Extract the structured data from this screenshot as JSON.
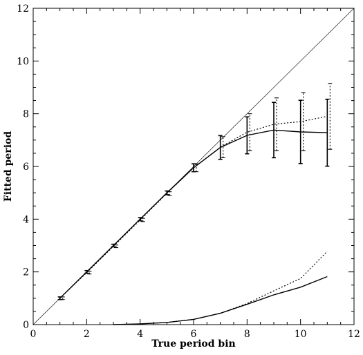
{
  "chart_data": {
    "type": "line",
    "title": "",
    "xlabel": "True period bin",
    "ylabel": "Fitted period",
    "xlim": [
      0,
      12
    ],
    "ylim": [
      0,
      12
    ],
    "xticks": [
      0,
      2,
      4,
      6,
      8,
      10,
      12
    ],
    "yticks": [
      0,
      2,
      4,
      6,
      8,
      10,
      12
    ],
    "grid": false,
    "legend": "none",
    "identity_line": true,
    "series": [
      {
        "style": "solid",
        "x": [
          1,
          2,
          3,
          4,
          5,
          6,
          7,
          8,
          9,
          10,
          11
        ],
        "y": [
          1.0,
          2.0,
          3.0,
          4.0,
          5.0,
          5.95,
          6.72,
          7.18,
          7.38,
          7.31,
          7.28
        ],
        "err": [
          0.05,
          0.05,
          0.05,
          0.06,
          0.07,
          0.15,
          0.45,
          0.7,
          1.05,
          1.2,
          1.27
        ]
      },
      {
        "style": "dotted",
        "x": [
          1,
          2,
          3,
          4,
          5,
          6,
          7,
          8,
          9,
          10,
          11
        ],
        "y": [
          1.0,
          1.97,
          2.97,
          3.97,
          4.97,
          5.95,
          6.73,
          7.3,
          7.6,
          7.7,
          7.9
        ],
        "err": [
          0.05,
          0.05,
          0.05,
          0.06,
          0.07,
          0.15,
          0.4,
          0.7,
          1.0,
          1.1,
          1.25
        ]
      },
      {
        "style": "solid",
        "x": [
          3,
          4,
          5,
          6,
          7,
          8,
          9,
          10,
          11
        ],
        "y": [
          0.0,
          0.03,
          0.08,
          0.2,
          0.43,
          0.77,
          1.13,
          1.42,
          1.82
        ]
      },
      {
        "style": "dotted",
        "x": [
          3,
          4,
          5,
          6,
          7,
          8,
          9,
          10,
          11
        ],
        "y": [
          0.0,
          0.03,
          0.08,
          0.2,
          0.43,
          0.8,
          1.28,
          1.75,
          2.78
        ]
      }
    ]
  }
}
